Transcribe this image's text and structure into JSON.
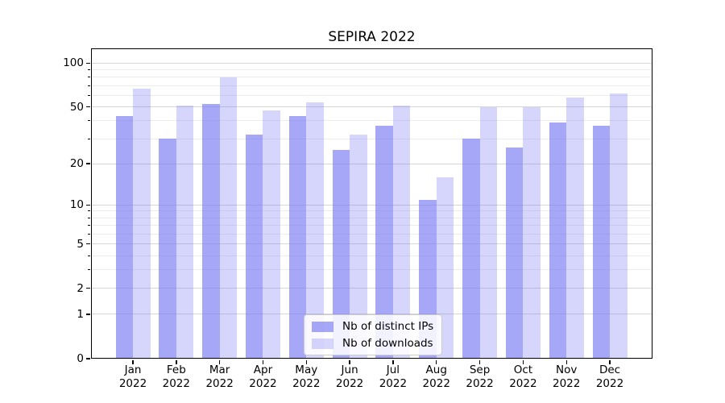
{
  "chart_data": {
    "type": "bar",
    "title": "SEPIRA 2022",
    "categories": [
      "Jan",
      "Feb",
      "Mar",
      "Apr",
      "May",
      "Jun",
      "Jul",
      "Aug",
      "Sep",
      "Oct",
      "Nov",
      "Dec"
    ],
    "year_label": "2022",
    "series": [
      {
        "name": "Nb of distinct IPs",
        "values": [
          43,
          30,
          52,
          32,
          43,
          25,
          37,
          11,
          30,
          26,
          39,
          37
        ],
        "color": "rgba(120,120,245,0.65)"
      },
      {
        "name": "Nb of downloads",
        "values": [
          67,
          51,
          80,
          47,
          54,
          32,
          51,
          16,
          50,
          50,
          58,
          62
        ],
        "color": "rgba(120,120,245,0.30)"
      }
    ],
    "xlabel": "",
    "ylabel": "",
    "yscale": "log1p",
    "yticks": [
      0,
      1,
      2,
      5,
      10,
      20,
      50,
      100
    ],
    "minor_yticks": [
      3,
      4,
      6,
      7,
      8,
      9,
      30,
      40,
      60,
      70,
      80,
      90
    ],
    "ylim": [
      0,
      126
    ],
    "grid": true,
    "legend_position": "lower center"
  },
  "colors": {
    "background": "#ffffff",
    "spine": "#000000",
    "major_grid": "#d6d6d6",
    "minor_grid": "#ececec",
    "bar_dark_blended": "#a8a8f8",
    "bar_light_blended": "#d8d8f8"
  }
}
